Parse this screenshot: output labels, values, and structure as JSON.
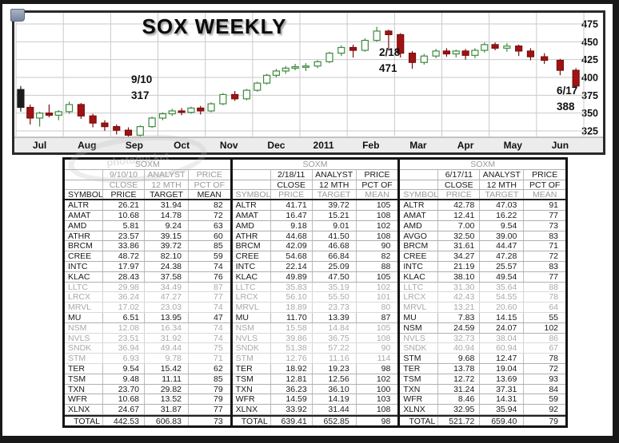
{
  "chart": {
    "title": "SOX WEEKLY",
    "annotations": [
      {
        "date": "9/10",
        "value": "317"
      },
      {
        "date": "2/18",
        "value": "471"
      },
      {
        "date": "6/17",
        "value": "388"
      }
    ]
  },
  "watermark": {
    "text": "photobucket"
  },
  "chart_data": {
    "type": "candlestick",
    "title": "SOX WEEKLY",
    "ylabel": "",
    "xlabel": "",
    "ylim": [
      312,
      488
    ],
    "y_ticks": [
      475,
      450,
      425,
      400,
      375,
      350,
      325
    ],
    "grid": true,
    "months": [
      {
        "label": "Jul",
        "weeks": 5
      },
      {
        "label": "Aug",
        "weeks": 4
      },
      {
        "label": "Sep",
        "weeks": 4
      },
      {
        "label": "Oct",
        "weeks": 5
      },
      {
        "label": "Nov",
        "weeks": 4
      },
      {
        "label": "Dec",
        "weeks": 5
      },
      {
        "label": "2011",
        "weeks": 4
      },
      {
        "label": "Feb",
        "weeks": 4
      },
      {
        "label": "Mar",
        "weeks": 4
      },
      {
        "label": "Apr",
        "weeks": 5
      },
      {
        "label": "May",
        "weeks": 4
      },
      {
        "label": "Jun",
        "weeks": 3
      }
    ],
    "ohlc": [
      [
        383,
        388,
        352,
        358
      ],
      [
        358,
        362,
        334,
        343
      ],
      [
        343,
        352,
        331,
        350
      ],
      [
        350,
        362,
        344,
        347
      ],
      [
        347,
        354,
        340,
        352
      ],
      [
        352,
        366,
        349,
        362
      ],
      [
        362,
        364,
        342,
        346
      ],
      [
        346,
        349,
        330,
        336
      ],
      [
        336,
        340,
        325,
        331
      ],
      [
        331,
        334,
        320,
        326
      ],
      [
        326,
        330,
        317,
        319
      ],
      [
        319,
        333,
        317,
        331
      ],
      [
        331,
        345,
        329,
        343
      ],
      [
        343,
        351,
        340,
        349
      ],
      [
        349,
        356,
        346,
        353
      ],
      [
        353,
        357,
        347,
        351
      ],
      [
        351,
        359,
        349,
        357
      ],
      [
        357,
        360,
        348,
        353
      ],
      [
        353,
        365,
        351,
        363
      ],
      [
        363,
        378,
        361,
        376
      ],
      [
        376,
        381,
        367,
        370
      ],
      [
        370,
        384,
        368,
        382
      ],
      [
        382,
        394,
        380,
        392
      ],
      [
        392,
        405,
        390,
        403
      ],
      [
        403,
        412,
        400,
        409
      ],
      [
        409,
        416,
        405,
        413
      ],
      [
        413,
        419,
        410,
        415
      ],
      [
        415,
        420,
        409,
        416
      ],
      [
        416,
        424,
        413,
        422
      ],
      [
        422,
        436,
        420,
        434
      ],
      [
        434,
        445,
        430,
        442
      ],
      [
        442,
        446,
        428,
        438
      ],
      [
        438,
        455,
        436,
        452
      ],
      [
        452,
        471,
        450,
        465
      ],
      [
        465,
        467,
        438,
        460
      ],
      [
        460,
        462,
        428,
        434
      ],
      [
        434,
        437,
        412,
        421
      ],
      [
        421,
        433,
        418,
        430
      ],
      [
        430,
        440,
        427,
        437
      ],
      [
        437,
        441,
        429,
        433
      ],
      [
        433,
        439,
        428,
        437
      ],
      [
        437,
        440,
        425,
        431
      ],
      [
        431,
        441,
        427,
        438
      ],
      [
        438,
        449,
        435,
        446
      ],
      [
        446,
        449,
        438,
        441
      ],
      [
        441,
        448,
        436,
        444
      ],
      [
        444,
        446,
        430,
        437
      ],
      [
        437,
        441,
        424,
        429
      ],
      [
        429,
        434,
        419,
        424
      ],
      [
        424,
        426,
        403,
        410
      ],
      [
        410,
        413,
        385,
        388
      ]
    ],
    "first_candle_black": true,
    "annotations": [
      {
        "week": 10,
        "date": "9/10",
        "value": 317
      },
      {
        "week": 33,
        "date": "2/18",
        "value": 471
      },
      {
        "week": 50,
        "date": "6/17",
        "value": 388
      }
    ]
  },
  "colors": {
    "up": "#3d8b3d",
    "down": "#a01313",
    "down_border": "#7a0f0f",
    "first": "#1c1c1c",
    "grid": "#cacaca",
    "axis_strip": "#ececec",
    "axis_line": "#8f8f8f",
    "text": "#111111",
    "faded_text": "#a9a9a9"
  },
  "table": {
    "labels": {
      "soxm": "SOXM",
      "analyst": "ANALYST",
      "price": "PRICE",
      "close": "CLOSE",
      "mth": "12 MTH",
      "pct_of": "PCT OF",
      "symbol": "SYMBOL",
      "price2": "PRICE",
      "target": "TARGET",
      "mean": "MEAN",
      "total": "TOTAL"
    },
    "groups": [
      {
        "name": "SOXM",
        "date": "9/10/10",
        "dim_rows": [
          0,
          1,
          2
        ],
        "faded": [
          8,
          9,
          10,
          12,
          13,
          14,
          15
        ],
        "rows": [
          [
            "ALTR",
            "26.21",
            "31.94",
            "82"
          ],
          [
            "AMAT",
            "10.68",
            "14.78",
            "72"
          ],
          [
            "AMD",
            "5.81",
            "9.24",
            "63"
          ],
          [
            "ATHR",
            "23.57",
            "39.15",
            "60"
          ],
          [
            "BRCM",
            "33.86",
            "39.72",
            "85"
          ],
          [
            "CREE",
            "48.72",
            "82.10",
            "59"
          ],
          [
            "INTC",
            "17.97",
            "24.38",
            "74"
          ],
          [
            "KLAC",
            "28.43",
            "37.58",
            "76"
          ],
          [
            "LLTC",
            "29.98",
            "34.49",
            "87"
          ],
          [
            "LRCX",
            "36.24",
            "47.27",
            "77"
          ],
          [
            "MRVL",
            "17.02",
            "23.03",
            "74"
          ],
          [
            "MU",
            "6.51",
            "13.95",
            "47"
          ],
          [
            "NSM",
            "12.08",
            "16.34",
            "74"
          ],
          [
            "NVLS",
            "23.51",
            "31.92",
            "74"
          ],
          [
            "SNDK",
            "36.94",
            "49.44",
            "75"
          ],
          [
            "STM",
            "6.93",
            "9.78",
            "71"
          ],
          [
            "TER",
            "9.54",
            "15.42",
            "62"
          ],
          [
            "TSM",
            "9.48",
            "11.11",
            "85"
          ],
          [
            "TXN",
            "23.70",
            "29.82",
            "79"
          ],
          [
            "WFR",
            "10.68",
            "13.52",
            "79"
          ],
          [
            "XLNX",
            "24.67",
            "31.87",
            "77"
          ]
        ],
        "total": [
          "442.53",
          "606.83",
          "73"
        ]
      },
      {
        "name": "SOXM",
        "date": "2/18/11",
        "dim_rows": [
          0,
          3
        ],
        "faded": [
          8,
          9,
          10,
          12,
          13,
          14,
          15
        ],
        "rows": [
          [
            "ALTR",
            "41.71",
            "39.72",
            "105"
          ],
          [
            "AMAT",
            "16.47",
            "15.21",
            "108"
          ],
          [
            "AMD",
            "9.18",
            "9.01",
            "102"
          ],
          [
            "ATHR",
            "44.68",
            "41.50",
            "108"
          ],
          [
            "BRCM",
            "42.09",
            "46.68",
            "90"
          ],
          [
            "CREE",
            "54.68",
            "66.84",
            "82"
          ],
          [
            "INTC",
            "22.14",
            "25.09",
            "88"
          ],
          [
            "KLAC",
            "49.89",
            "47.50",
            "105"
          ],
          [
            "LLTC",
            "35.83",
            "35.19",
            "102"
          ],
          [
            "LRCX",
            "56.10",
            "55.50",
            "101"
          ],
          [
            "MRVL",
            "18.89",
            "23.73",
            "80"
          ],
          [
            "MU",
            "11.70",
            "13.39",
            "87"
          ],
          [
            "NSM",
            "15.58",
            "14.84",
            "105"
          ],
          [
            "NVLS",
            "39.86",
            "36.75",
            "108"
          ],
          [
            "SNDK",
            "51.38",
            "57.22",
            "90"
          ],
          [
            "STM",
            "12.76",
            "11.16",
            "114"
          ],
          [
            "TER",
            "18.92",
            "19.23",
            "98"
          ],
          [
            "TSM",
            "12.81",
            "12.56",
            "102"
          ],
          [
            "TXN",
            "36.23",
            "36.10",
            "100"
          ],
          [
            "WFR",
            "14.59",
            "14.19",
            "103"
          ],
          [
            "XLNX",
            "33.92",
            "31.44",
            "108"
          ]
        ],
        "total": [
          "639.41",
          "652.85",
          "98"
        ]
      },
      {
        "name": "SOXM",
        "date": "6/17/11",
        "dim_rows": [
          0,
          3
        ],
        "faded": [
          8,
          9,
          10,
          13,
          14
        ],
        "rows": [
          [
            "ALTR",
            "42.78",
            "47.03",
            "91"
          ],
          [
            "AMAT",
            "12.41",
            "16.22",
            "77"
          ],
          [
            "AMD",
            "7.00",
            "9.54",
            "73"
          ],
          [
            "AVGO",
            "32.50",
            "39.00",
            "83"
          ],
          [
            "BRCM",
            "31.61",
            "44.47",
            "71"
          ],
          [
            "CREE",
            "34.27",
            "47.28",
            "72"
          ],
          [
            "INTC",
            "21.19",
            "25.57",
            "83"
          ],
          [
            "KLAC",
            "38.10",
            "49.54",
            "77"
          ],
          [
            "LLTC",
            "31.30",
            "35.64",
            "88"
          ],
          [
            "LRCX",
            "42.43",
            "54.55",
            "78"
          ],
          [
            "MRVL",
            "13.21",
            "20.60",
            "64"
          ],
          [
            "MU",
            "7.83",
            "14.15",
            "55"
          ],
          [
            "NSM",
            "24.59",
            "24.07",
            "102"
          ],
          [
            "NVLS",
            "32.73",
            "38.04",
            "86"
          ],
          [
            "SNDK",
            "40.94",
            "60.94",
            "67"
          ],
          [
            "STM",
            "9.68",
            "12.47",
            "78"
          ],
          [
            "TER",
            "13.78",
            "19.04",
            "72"
          ],
          [
            "TSM",
            "12.72",
            "13.69",
            "93"
          ],
          [
            "TXN",
            "31.24",
            "37.31",
            "84"
          ],
          [
            "WFR",
            "8.46",
            "14.31",
            "59"
          ],
          [
            "XLNX",
            "32.95",
            "35.94",
            "92"
          ]
        ],
        "total": [
          "521.72",
          "659.40",
          "79"
        ]
      }
    ]
  }
}
